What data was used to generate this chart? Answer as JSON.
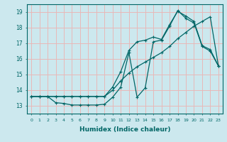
{
  "xlabel": "Humidex (Indice chaleur)",
  "background_color": "#cce8ee",
  "grid_color": "#e8b8b8",
  "line_color": "#006666",
  "xlim": [
    -0.5,
    23.5
  ],
  "ylim": [
    12.5,
    19.5
  ],
  "xticks": [
    0,
    1,
    2,
    3,
    4,
    5,
    6,
    7,
    8,
    9,
    10,
    11,
    12,
    13,
    14,
    15,
    16,
    17,
    18,
    19,
    20,
    21,
    22,
    23
  ],
  "yticks": [
    13,
    14,
    15,
    16,
    17,
    18,
    19
  ],
  "line1_x": [
    0,
    1,
    2,
    3,
    4,
    5,
    6,
    7,
    8,
    9,
    10,
    11,
    12,
    13,
    14,
    15,
    16,
    17,
    18,
    19,
    20,
    21,
    22,
    23
  ],
  "line1_y": [
    13.6,
    13.6,
    13.6,
    13.2,
    13.15,
    13.05,
    13.05,
    13.05,
    13.05,
    13.1,
    13.55,
    14.2,
    16.4,
    13.55,
    14.15,
    17.1,
    17.2,
    18.1,
    19.1,
    18.6,
    18.3,
    16.8,
    16.5,
    15.55
  ],
  "line2_x": [
    0,
    1,
    2,
    3,
    4,
    5,
    6,
    7,
    8,
    9,
    10,
    11,
    12,
    13,
    14,
    15,
    16,
    17,
    18,
    19,
    20,
    21,
    22,
    23
  ],
  "line2_y": [
    13.6,
    13.6,
    13.6,
    13.6,
    13.6,
    13.6,
    13.6,
    13.6,
    13.6,
    13.6,
    14.0,
    14.6,
    15.1,
    15.5,
    15.8,
    16.1,
    16.4,
    16.8,
    17.3,
    17.7,
    18.1,
    18.4,
    18.7,
    15.55
  ],
  "line3_x": [
    0,
    1,
    2,
    3,
    4,
    5,
    6,
    7,
    8,
    9,
    10,
    11,
    12,
    13,
    14,
    15,
    16,
    17,
    18,
    19,
    20,
    21,
    22,
    23
  ],
  "line3_y": [
    13.6,
    13.6,
    13.6,
    13.6,
    13.6,
    13.6,
    13.6,
    13.6,
    13.6,
    13.6,
    14.2,
    15.2,
    16.55,
    17.1,
    17.2,
    17.4,
    17.25,
    18.2,
    19.05,
    18.75,
    18.4,
    16.85,
    16.6,
    15.55
  ]
}
